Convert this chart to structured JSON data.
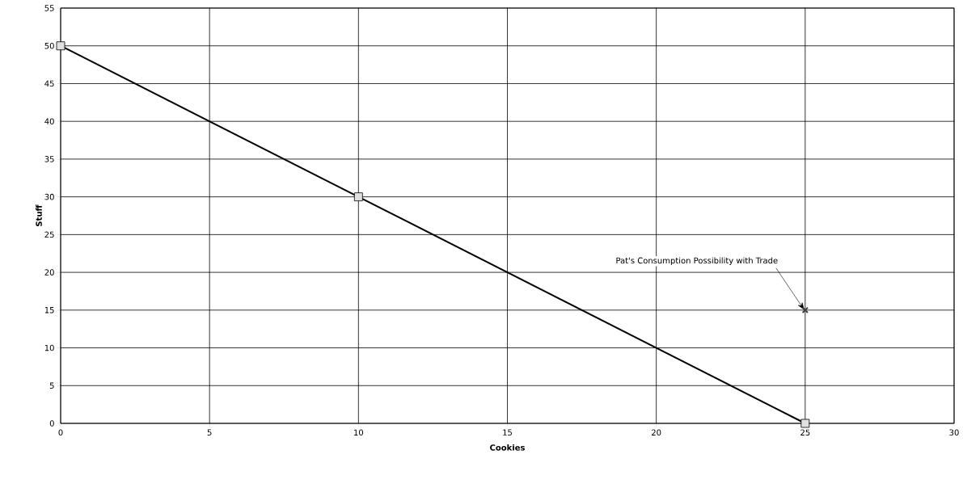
{
  "chart_data": {
    "type": "line",
    "xlabel": "Cookies",
    "ylabel": "Stuff",
    "xlim": [
      0,
      30
    ],
    "xticks": [
      0,
      5,
      10,
      15,
      20,
      25,
      30
    ],
    "ylim": [
      0,
      55
    ],
    "yticks": [
      0,
      5,
      10,
      15,
      20,
      25,
      30,
      35,
      40,
      45,
      50,
      55
    ],
    "grid": true,
    "series": [
      {
        "type": "line",
        "x": [
          0,
          10,
          25
        ],
        "values": [
          50,
          30,
          0
        ],
        "color": "#000000",
        "marker": "square",
        "line_style": "solid"
      },
      {
        "type": "scatter",
        "x": [
          25
        ],
        "values": [
          15
        ],
        "color": "#404040",
        "marker": "cross"
      }
    ],
    "annotations": [
      {
        "text": "Pat's Consumption Possibility with Trade",
        "x": 25,
        "y": 15
      }
    ]
  }
}
